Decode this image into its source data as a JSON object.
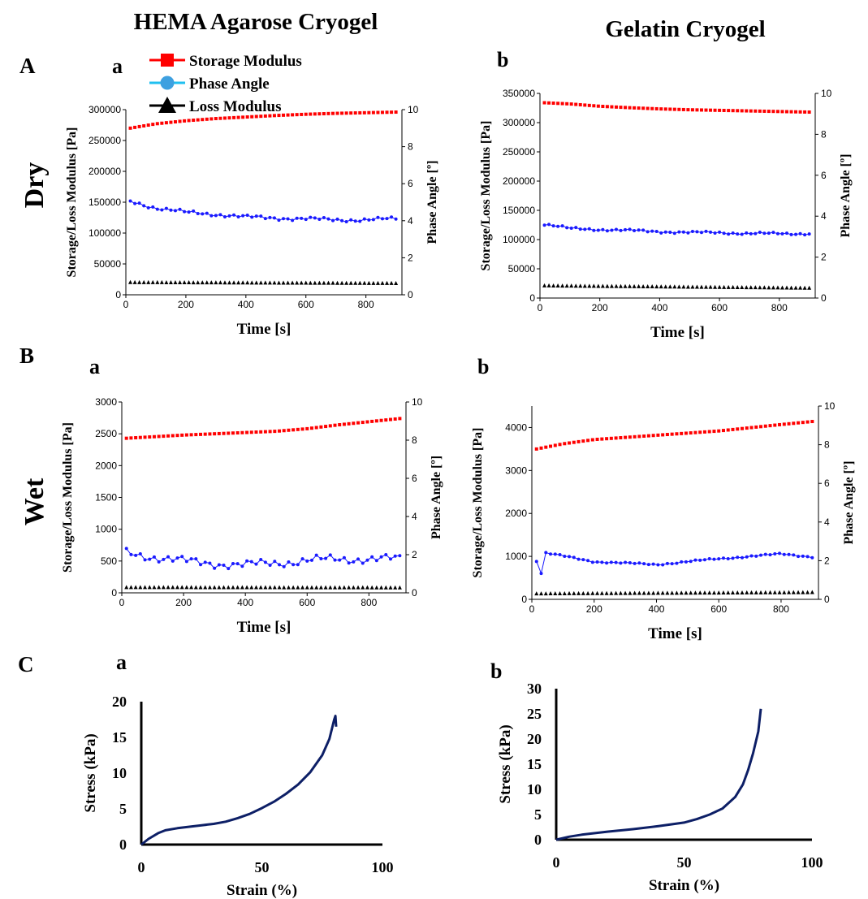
{
  "column_titles": [
    "HEMA Agarose Cryogel",
    "Gelatin Cryogel"
  ],
  "row_letters": [
    "A",
    "B",
    "C"
  ],
  "condition_labels": [
    "Dry",
    "Wet"
  ],
  "colors": {
    "storage": "#ff0000",
    "phase": "#1a1aff",
    "loss": "#000000",
    "stress_curve": "#0d1f66",
    "legend_phase_marker": "#3ea0e0",
    "legend_phase_line": "#20c0f0"
  },
  "legend": {
    "items": [
      {
        "label": "Storage Modulus",
        "marker": "square",
        "color": "#ff0000"
      },
      {
        "label": "Phase Angle",
        "marker": "circle",
        "color": "#3ea0e0"
      },
      {
        "label": "Loss Modulus",
        "marker": "triangle",
        "color": "#000000"
      }
    ]
  },
  "chart_data": [
    {
      "id": "Aa",
      "panel_label": "a",
      "type": "line",
      "xlabel": "Time  [s]",
      "ylabel": "Storage/Loss  Modulus  [Pa]",
      "y2label": "Phase Angle [º]",
      "xlim": [
        0,
        920
      ],
      "xticks": [
        0,
        200,
        400,
        600,
        800
      ],
      "ylim": [
        0,
        300000
      ],
      "yticks": [
        0,
        50000,
        100000,
        150000,
        200000,
        250000,
        300000
      ],
      "y2lim": [
        0,
        10
      ],
      "y2ticks": [
        0,
        2,
        4,
        6,
        8,
        10
      ],
      "x": {
        "start": 15,
        "step": 15,
        "count": 60
      },
      "series": [
        {
          "name": "Storage Modulus",
          "axis": "left",
          "marker": "square",
          "color": "#ff0000",
          "line": false,
          "keypoints": [
            [
              15,
              270000
            ],
            [
              100,
              277000
            ],
            [
              200,
              282000
            ],
            [
              300,
              285500
            ],
            [
              400,
              288000
            ],
            [
              500,
              290500
            ],
            [
              600,
              292500
            ],
            [
              700,
              294000
            ],
            [
              800,
              295000
            ],
            [
              900,
              296000
            ]
          ],
          "noise": 0
        },
        {
          "name": "Phase Angle",
          "axis": "right",
          "marker": "circle",
          "color": "#1a1aff",
          "line": true,
          "keypoints": [
            [
              15,
              5.05
            ],
            [
              100,
              4.7
            ],
            [
              200,
              4.45
            ],
            [
              300,
              4.35
            ],
            [
              400,
              4.2
            ],
            [
              500,
              4.15
            ],
            [
              600,
              4.1
            ],
            [
              700,
              4.05
            ],
            [
              800,
              4.05
            ],
            [
              900,
              4.1
            ]
          ],
          "noise": 0.12
        },
        {
          "name": "Loss Modulus",
          "axis": "left",
          "marker": "triangle",
          "color": "#000000",
          "line": false,
          "keypoints": [
            [
              15,
              20000
            ],
            [
              900,
              18500
            ]
          ],
          "noise": 0
        }
      ]
    },
    {
      "id": "Ab",
      "panel_label": "b",
      "type": "line",
      "xlabel": "Time  [s]",
      "ylabel": "Storage/Loss  Modulus  [Pa]",
      "y2label": "Phase Angle [º]",
      "xlim": [
        0,
        920
      ],
      "xticks": [
        0,
        200,
        400,
        600,
        800
      ],
      "ylim": [
        0,
        350000
      ],
      "yticks": [
        0,
        50000,
        100000,
        150000,
        200000,
        250000,
        300000,
        350000
      ],
      "y2lim": [
        0,
        10
      ],
      "y2ticks": [
        0,
        2,
        4,
        6,
        8,
        10
      ],
      "x": {
        "start": 15,
        "step": 15,
        "count": 60
      },
      "series": [
        {
          "name": "Storage Modulus",
          "axis": "left",
          "marker": "square",
          "color": "#ff0000",
          "line": false,
          "keypoints": [
            [
              15,
              334000
            ],
            [
              100,
              332000
            ],
            [
              200,
              328000
            ],
            [
              300,
              325500
            ],
            [
              400,
              323500
            ],
            [
              500,
              322000
            ],
            [
              600,
              321000
            ],
            [
              700,
              320000
            ],
            [
              800,
              319000
            ],
            [
              900,
              318000
            ]
          ],
          "noise": 0
        },
        {
          "name": "Phase Angle",
          "axis": "right",
          "marker": "circle",
          "color": "#1a1aff",
          "line": true,
          "keypoints": [
            [
              15,
              3.6
            ],
            [
              100,
              3.4
            ],
            [
              200,
              3.35
            ],
            [
              300,
              3.3
            ],
            [
              400,
              3.25
            ],
            [
              500,
              3.2
            ],
            [
              600,
              3.2
            ],
            [
              700,
              3.15
            ],
            [
              800,
              3.15
            ],
            [
              900,
              3.15
            ]
          ],
          "noise": 0.07
        },
        {
          "name": "Loss Modulus",
          "axis": "left",
          "marker": "triangle",
          "color": "#000000",
          "line": false,
          "keypoints": [
            [
              15,
              21000
            ],
            [
              900,
              17000
            ]
          ],
          "noise": 0
        }
      ]
    },
    {
      "id": "Ba",
      "panel_label": "a",
      "type": "line",
      "xlabel": "Time  [s]",
      "ylabel": "Storage/Loss  Modulus  [Pa]",
      "y2label": "Phase Angle [º]",
      "xlim": [
        0,
        920
      ],
      "xticks": [
        0,
        200,
        400,
        600,
        800
      ],
      "ylim": [
        0,
        3000
      ],
      "yticks": [
        0,
        500,
        1000,
        1500,
        2000,
        2500,
        3000
      ],
      "y2lim": [
        0,
        10
      ],
      "y2ticks": [
        0,
        2,
        4,
        6,
        8,
        10
      ],
      "x": {
        "start": 15,
        "step": 15,
        "count": 60
      },
      "series": [
        {
          "name": "Storage Modulus",
          "axis": "left",
          "marker": "square",
          "color": "#ff0000",
          "line": false,
          "keypoints": [
            [
              15,
              2430
            ],
            [
              200,
              2480
            ],
            [
              400,
              2520
            ],
            [
              500,
              2540
            ],
            [
              600,
              2580
            ],
            [
              700,
              2640
            ],
            [
              800,
              2690
            ],
            [
              900,
              2740
            ]
          ],
          "noise": 0
        },
        {
          "name": "Phase Angle",
          "axis": "right",
          "marker": "circle",
          "color": "#1a1aff",
          "line": true,
          "keypoints": [
            [
              15,
              2.1
            ],
            [
              200,
              1.65
            ],
            [
              400,
              1.45
            ],
            [
              600,
              1.7
            ],
            [
              800,
              1.8
            ],
            [
              900,
              1.75
            ]
          ],
          "noise": 0.28
        },
        {
          "name": "Loss Modulus",
          "axis": "left",
          "marker": "triangle",
          "color": "#000000",
          "line": false,
          "keypoints": [
            [
              15,
              85
            ],
            [
              900,
              80
            ]
          ],
          "noise": 0
        }
      ]
    },
    {
      "id": "Bb",
      "panel_label": "b",
      "type": "line",
      "xlabel": "Time  [s]",
      "ylabel": "Storage/Loss  Modulus  [Pa]",
      "y2label": "Phase Angle [º]",
      "xlim": [
        0,
        920
      ],
      "xticks": [
        0,
        200,
        400,
        600,
        800
      ],
      "ylim": [
        0,
        4500
      ],
      "yticks": [
        0,
        1000,
        2000,
        3000,
        4000
      ],
      "y2lim": [
        0,
        10
      ],
      "y2ticks": [
        0,
        2,
        4,
        6,
        8,
        10
      ],
      "x": {
        "start": 15,
        "step": 15,
        "count": 60
      },
      "series": [
        {
          "name": "Storage Modulus",
          "axis": "left",
          "marker": "square",
          "color": "#ff0000",
          "line": false,
          "keypoints": [
            [
              15,
              3500
            ],
            [
              100,
              3620
            ],
            [
              200,
              3720
            ],
            [
              400,
              3820
            ],
            [
              600,
              3920
            ],
            [
              800,
              4070
            ],
            [
              900,
              4140
            ]
          ],
          "noise": 0
        },
        {
          "name": "Phase Angle",
          "axis": "right",
          "marker": "circle",
          "color": "#1a1aff",
          "line": true,
          "keypoints": [
            [
              15,
              2.0
            ],
            [
              30,
              1.35
            ],
            [
              45,
              2.4
            ],
            [
              200,
              1.95
            ],
            [
              400,
              1.8
            ],
            [
              600,
              2.1
            ],
            [
              800,
              2.35
            ],
            [
              900,
              2.2
            ]
          ],
          "noise": 0.05
        },
        {
          "name": "Loss Modulus",
          "axis": "left",
          "marker": "triangle",
          "color": "#000000",
          "line": false,
          "keypoints": [
            [
              15,
              130
            ],
            [
              900,
              160
            ]
          ],
          "noise": 0
        }
      ]
    },
    {
      "id": "Ca",
      "panel_label": "a",
      "type": "line",
      "xlabel": "Strain (%)",
      "ylabel": "Stress (kPa)",
      "xlim": [
        0,
        100
      ],
      "xticks": [
        0,
        50,
        100
      ],
      "ylim": [
        0,
        20
      ],
      "yticks": [
        0,
        5,
        10,
        15,
        20
      ],
      "series": [
        {
          "name": "",
          "color": "#0d1f66",
          "points": [
            [
              0,
              0
            ],
            [
              3,
              0.8
            ],
            [
              7,
              1.6
            ],
            [
              10,
              2.0
            ],
            [
              15,
              2.3
            ],
            [
              20,
              2.5
            ],
            [
              25,
              2.7
            ],
            [
              30,
              2.9
            ],
            [
              35,
              3.2
            ],
            [
              40,
              3.7
            ],
            [
              45,
              4.3
            ],
            [
              50,
              5.1
            ],
            [
              55,
              6.0
            ],
            [
              60,
              7.1
            ],
            [
              65,
              8.4
            ],
            [
              70,
              10.1
            ],
            [
              75,
              12.5
            ],
            [
              78,
              14.8
            ],
            [
              80,
              17.5
            ],
            [
              80.5,
              18
            ],
            [
              80.8,
              16.5
            ]
          ]
        }
      ]
    },
    {
      "id": "Cb",
      "panel_label": "b",
      "type": "line",
      "xlabel": "Strain (%)",
      "ylabel": "Stress (kPa)",
      "xlim": [
        0,
        100
      ],
      "xticks": [
        0,
        50,
        100
      ],
      "ylim": [
        0,
        30
      ],
      "yticks": [
        0,
        5,
        10,
        15,
        20,
        25,
        30
      ],
      "series": [
        {
          "name": "",
          "color": "#0d1f66",
          "points": [
            [
              0,
              0
            ],
            [
              5,
              0.6
            ],
            [
              10,
              1.0
            ],
            [
              20,
              1.6
            ],
            [
              30,
              2.1
            ],
            [
              40,
              2.7
            ],
            [
              50,
              3.4
            ],
            [
              55,
              4.1
            ],
            [
              60,
              5.0
            ],
            [
              65,
              6.2
            ],
            [
              70,
              8.5
            ],
            [
              73,
              11
            ],
            [
              75,
              13.8
            ],
            [
              77,
              17.2
            ],
            [
              79,
              21.5
            ],
            [
              80,
              26
            ]
          ]
        }
      ]
    }
  ]
}
